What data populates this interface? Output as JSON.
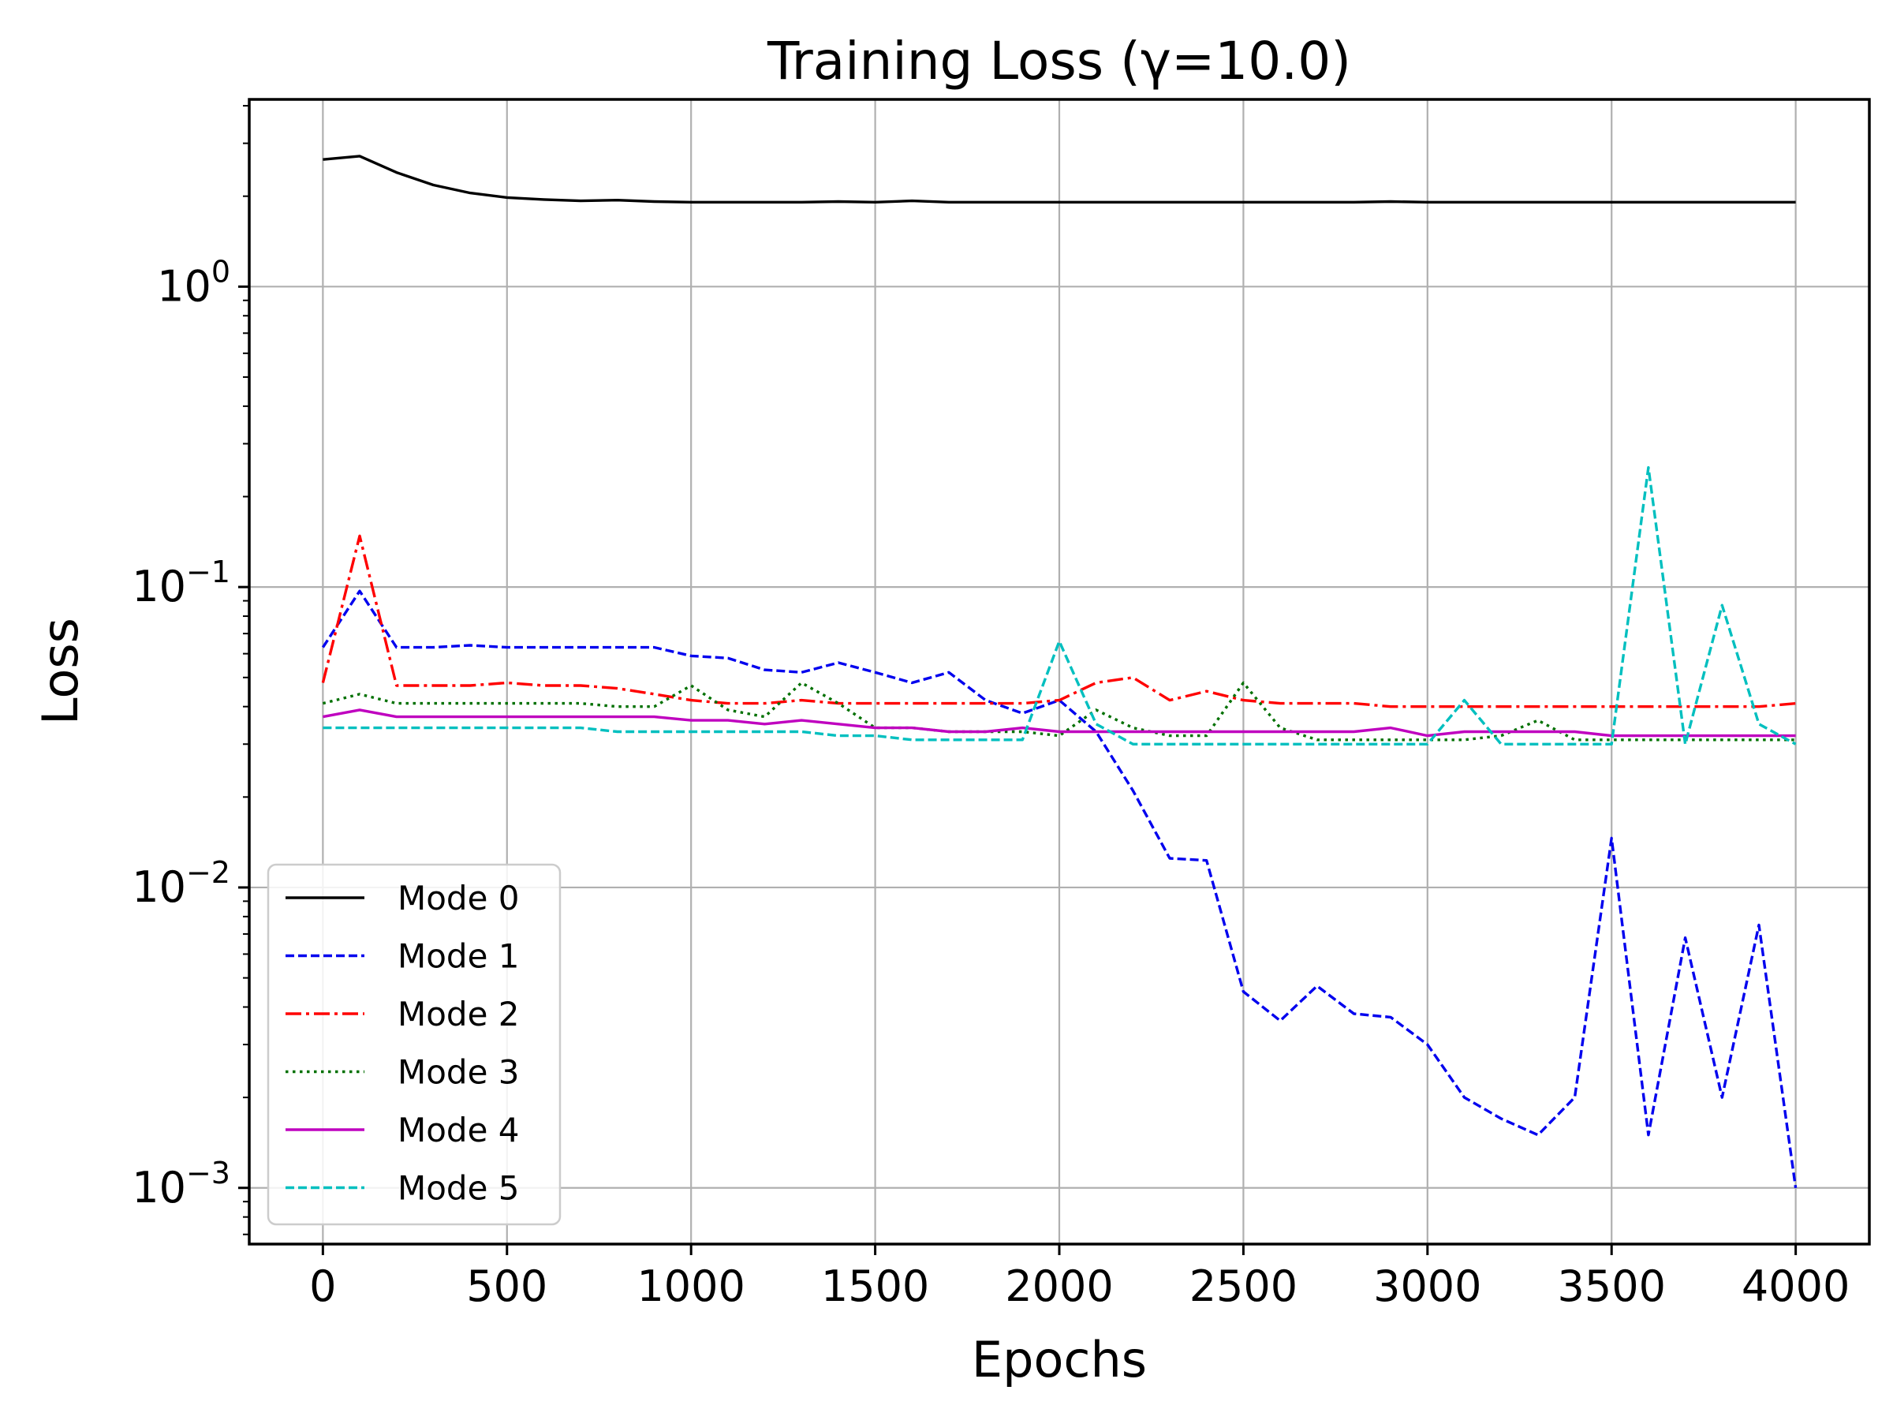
{
  "chart_data": {
    "type": "line",
    "title": "Training Loss (γ=10.0)",
    "xlabel": "Epochs",
    "ylabel": "Loss",
    "yscale": "log",
    "xlim": [
      -200,
      4200
    ],
    "ylim": [
      0.00065,
      4.2
    ],
    "grid": true,
    "legend_position": "lower-left",
    "x_ticks": [
      {
        "value": 0,
        "label": "0"
      },
      {
        "value": 500,
        "label": "500"
      },
      {
        "value": 1000,
        "label": "1000"
      },
      {
        "value": 1500,
        "label": "1500"
      },
      {
        "value": 2000,
        "label": "2000"
      },
      {
        "value": 2500,
        "label": "2500"
      },
      {
        "value": 3000,
        "label": "3000"
      },
      {
        "value": 3500,
        "label": "3500"
      },
      {
        "value": 4000,
        "label": "4000"
      }
    ],
    "y_ticks": [
      {
        "value": 1,
        "base": "10",
        "exp": "0"
      },
      {
        "value": 0.1,
        "base": "10",
        "exp": "−1"
      },
      {
        "value": 0.01,
        "base": "10",
        "exp": "−2"
      },
      {
        "value": 0.001,
        "base": "10",
        "exp": "−3"
      }
    ],
    "x": [
      0,
      100,
      200,
      300,
      400,
      500,
      600,
      700,
      800,
      900,
      1000,
      1100,
      1200,
      1300,
      1400,
      1500,
      1600,
      1700,
      1800,
      1900,
      2000,
      2100,
      2200,
      2300,
      2400,
      2500,
      2600,
      2700,
      2800,
      2900,
      3000,
      3100,
      3200,
      3300,
      3400,
      3500,
      3600,
      3700,
      3800,
      3900,
      4000
    ],
    "series": [
      {
        "name": "Mode 0",
        "color": "#000000",
        "dash": "solid",
        "values": [
          2.65,
          2.72,
          2.4,
          2.18,
          2.05,
          1.98,
          1.95,
          1.93,
          1.94,
          1.92,
          1.91,
          1.91,
          1.91,
          1.91,
          1.92,
          1.91,
          1.93,
          1.91,
          1.91,
          1.91,
          1.91,
          1.91,
          1.91,
          1.91,
          1.91,
          1.91,
          1.91,
          1.91,
          1.91,
          1.92,
          1.91,
          1.91,
          1.91,
          1.91,
          1.91,
          1.91,
          1.91,
          1.91,
          1.91,
          1.91,
          1.91
        ]
      },
      {
        "name": "Mode 1",
        "color": "#0000ee",
        "dash": "dashed",
        "values": [
          0.063,
          0.097,
          0.063,
          0.063,
          0.064,
          0.063,
          0.063,
          0.063,
          0.063,
          0.063,
          0.059,
          0.058,
          0.053,
          0.052,
          0.056,
          0.052,
          0.048,
          0.052,
          0.042,
          0.038,
          0.042,
          0.033,
          0.021,
          0.0125,
          0.0123,
          0.0045,
          0.0036,
          0.0047,
          0.0038,
          0.0037,
          0.003,
          0.002,
          0.0017,
          0.0015,
          0.002,
          0.0146,
          0.0015,
          0.0068,
          0.002,
          0.0075,
          0.001
        ]
      },
      {
        "name": "Mode 2",
        "color": "#ff0000",
        "dash": "dashdot",
        "values": [
          0.048,
          0.148,
          0.047,
          0.047,
          0.047,
          0.048,
          0.047,
          0.047,
          0.046,
          0.044,
          0.042,
          0.041,
          0.041,
          0.042,
          0.041,
          0.041,
          0.041,
          0.041,
          0.041,
          0.041,
          0.042,
          0.048,
          0.05,
          0.042,
          0.045,
          0.042,
          0.041,
          0.041,
          0.041,
          0.04,
          0.04,
          0.04,
          0.04,
          0.04,
          0.04,
          0.04,
          0.04,
          0.04,
          0.04,
          0.04,
          0.041
        ]
      },
      {
        "name": "Mode 3",
        "color": "#007000",
        "dash": "dotted",
        "values": [
          0.041,
          0.044,
          0.041,
          0.041,
          0.041,
          0.041,
          0.041,
          0.041,
          0.04,
          0.04,
          0.047,
          0.039,
          0.037,
          0.048,
          0.041,
          0.034,
          0.034,
          0.033,
          0.033,
          0.033,
          0.032,
          0.039,
          0.034,
          0.032,
          0.032,
          0.048,
          0.034,
          0.031,
          0.031,
          0.031,
          0.031,
          0.031,
          0.032,
          0.036,
          0.031,
          0.031,
          0.031,
          0.031,
          0.031,
          0.031,
          0.031
        ]
      },
      {
        "name": "Mode 4",
        "color": "#bf00bf",
        "dash": "solid",
        "values": [
          0.037,
          0.039,
          0.037,
          0.037,
          0.037,
          0.037,
          0.037,
          0.037,
          0.037,
          0.037,
          0.036,
          0.036,
          0.035,
          0.036,
          0.035,
          0.034,
          0.034,
          0.033,
          0.033,
          0.034,
          0.033,
          0.033,
          0.033,
          0.033,
          0.033,
          0.033,
          0.033,
          0.033,
          0.033,
          0.034,
          0.032,
          0.033,
          0.033,
          0.033,
          0.033,
          0.032,
          0.032,
          0.032,
          0.032,
          0.032,
          0.032
        ]
      },
      {
        "name": "Mode 5",
        "color": "#00bfbf",
        "dash": "dashed",
        "values": [
          0.034,
          0.034,
          0.034,
          0.034,
          0.034,
          0.034,
          0.034,
          0.034,
          0.033,
          0.033,
          0.033,
          0.033,
          0.033,
          0.033,
          0.032,
          0.032,
          0.031,
          0.031,
          0.031,
          0.031,
          0.066,
          0.035,
          0.03,
          0.03,
          0.03,
          0.03,
          0.03,
          0.03,
          0.03,
          0.03,
          0.03,
          0.042,
          0.03,
          0.03,
          0.03,
          0.03,
          0.25,
          0.03,
          0.087,
          0.035,
          0.03
        ]
      }
    ]
  }
}
